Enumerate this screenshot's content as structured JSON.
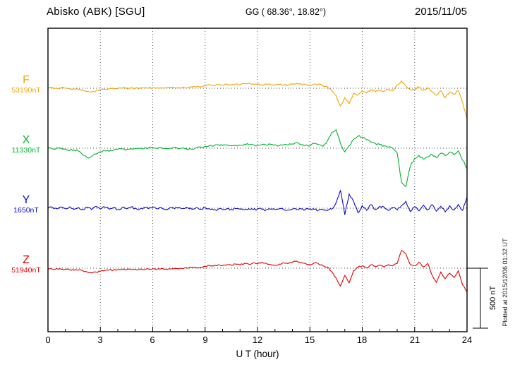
{
  "chart_data": {
    "type": "line",
    "title": "Abisko (ABK)  [SGU]",
    "coords_label": "GG ( 68.36°,  18.82°)",
    "date": "2015/11/05",
    "xlabel": "U T (hour)",
    "x_range": [
      0,
      24
    ],
    "x_tick_hours": [
      0,
      3,
      6,
      9,
      12,
      15,
      18,
      21,
      24
    ],
    "grid": "dotted vertical lines every 3 hours; dotted horizontal baseline per trace",
    "legend_position": "left baseline labels",
    "sample_step_hours": 0.25,
    "scale_bar": {
      "label": "500 nT",
      "nT": 500
    },
    "plotted_at": "Plotted at 2015/12/06 01:32 UT",
    "series": [
      {
        "name": "F",
        "label": "F",
        "baseline_label": "53190nT",
        "baseline_nT": 53190,
        "color": "#f0a500",
        "noise_amp_nT": 7,
        "values": [
          2,
          4,
          -1,
          3,
          0,
          -5,
          -8,
          -11,
          -16,
          -26,
          -31,
          -22,
          -12,
          -8,
          -5,
          -4,
          -2,
          1,
          -2,
          0,
          2,
          -1,
          3,
          1,
          0,
          4,
          2,
          5,
          3,
          6,
          4,
          7,
          5,
          9,
          11,
          13,
          20,
          28,
          24,
          30,
          26,
          33,
          28,
          35,
          30,
          38,
          43,
          36,
          32,
          28,
          35,
          30,
          26,
          31,
          24,
          29,
          33,
          41,
          35,
          30,
          25,
          36,
          34,
          20,
          12,
          -18,
          -62,
          -148,
          -78,
          -128,
          -42,
          -58,
          -22,
          -40,
          -12,
          -28,
          -15,
          -26,
          -10,
          -20,
          28,
          58,
          18,
          -12,
          -8,
          12,
          -18,
          2,
          -28,
          -58,
          -22,
          -78,
          -32,
          -52,
          -18,
          -120,
          -255
        ]
      },
      {
        "name": "X",
        "label": "X",
        "baseline_label": "11330nT",
        "baseline_nT": 11330,
        "color": "#00b32c",
        "noise_amp_nT": 8,
        "values": [
          0,
          -4,
          3,
          -2,
          -8,
          -18,
          -14,
          -24,
          -58,
          -78,
          -68,
          -48,
          -30,
          -22,
          -26,
          -16,
          -10,
          -6,
          -9,
          -4,
          -6,
          0,
          -4,
          2,
          0,
          -3,
          2,
          -2,
          1,
          5,
          -4,
          3,
          -14,
          -9,
          4,
          10,
          16,
          25,
          20,
          29,
          22,
          28,
          20,
          26,
          25,
          34,
          30,
          28,
          24,
          30,
          26,
          32,
          28,
          22,
          30,
          26,
          36,
          45,
          30,
          25,
          20,
          40,
          30,
          15,
          60,
          130,
          155,
          40,
          -30,
          20,
          75,
          100,
          92,
          70,
          52,
          40,
          30,
          20,
          10,
          0,
          -40,
          -285,
          -320,
          -150,
          -85,
          -60,
          -92,
          -70,
          -52,
          -80,
          -42,
          -62,
          -32,
          -52,
          -22,
          -100,
          -170
        ]
      },
      {
        "name": "Y",
        "label": "Y",
        "baseline_label": "1650nT",
        "baseline_nT": 1650,
        "color": "#0a0ad0",
        "noise_amp_nT": 9,
        "values": [
          0,
          8,
          -5,
          10,
          -4,
          12,
          -8,
          6,
          -10,
          8,
          -12,
          14,
          -6,
          10,
          -8,
          6,
          -12,
          5,
          -5,
          9,
          0,
          -8,
          6,
          -4,
          8,
          -6,
          4,
          -10,
          5,
          -5,
          8,
          -3,
          6,
          -10,
          5,
          -8,
          4,
          -6,
          -14,
          -8,
          -12,
          -6,
          -10,
          -4,
          -8,
          -12,
          -5,
          -11,
          -6,
          -9,
          -14,
          -7,
          -10,
          -5,
          -12,
          -15,
          -8,
          -12,
          -6,
          -10,
          -5,
          -9,
          -16,
          -11,
          -20,
          -8,
          45,
          150,
          -55,
          118,
          60,
          -38,
          22,
          -18,
          30,
          -12,
          15,
          8,
          -18,
          6,
          -14,
          22,
          58,
          -28,
          12,
          -22,
          26,
          -15,
          30,
          -25,
          16,
          -30,
          20,
          -15,
          32,
          -18,
          95
        ]
      },
      {
        "name": "Z",
        "label": "Z",
        "baseline_label": "51940nT",
        "baseline_nT": 51940,
        "color": "#e00000",
        "noise_amp_nT": 6,
        "values": [
          -5,
          -8,
          -3,
          -7,
          -10,
          -13,
          -17,
          -15,
          -22,
          -32,
          -40,
          -33,
          -25,
          -18,
          -15,
          -17,
          -12,
          -10,
          -13,
          -9,
          -10,
          -7,
          -11,
          -6,
          -6,
          -8,
          -4,
          -7,
          -5,
          -2,
          -6,
          -3,
          -1,
          4,
          2,
          7,
          14,
          24,
          19,
          28,
          22,
          30,
          25,
          34,
          28,
          40,
          33,
          44,
          36,
          50,
          41,
          30,
          25,
          34,
          45,
          38,
          50,
          60,
          46,
          40,
          30,
          44,
          36,
          20,
          10,
          -28,
          -82,
          -148,
          -60,
          -122,
          -22,
          8,
          20,
          2,
          28,
          15,
          25,
          10,
          30,
          20,
          40,
          148,
          118,
          30,
          20,
          50,
          12,
          40,
          -58,
          -118,
          -32,
          -88,
          -42,
          -78,
          -22,
          -140,
          -200
        ]
      }
    ]
  }
}
